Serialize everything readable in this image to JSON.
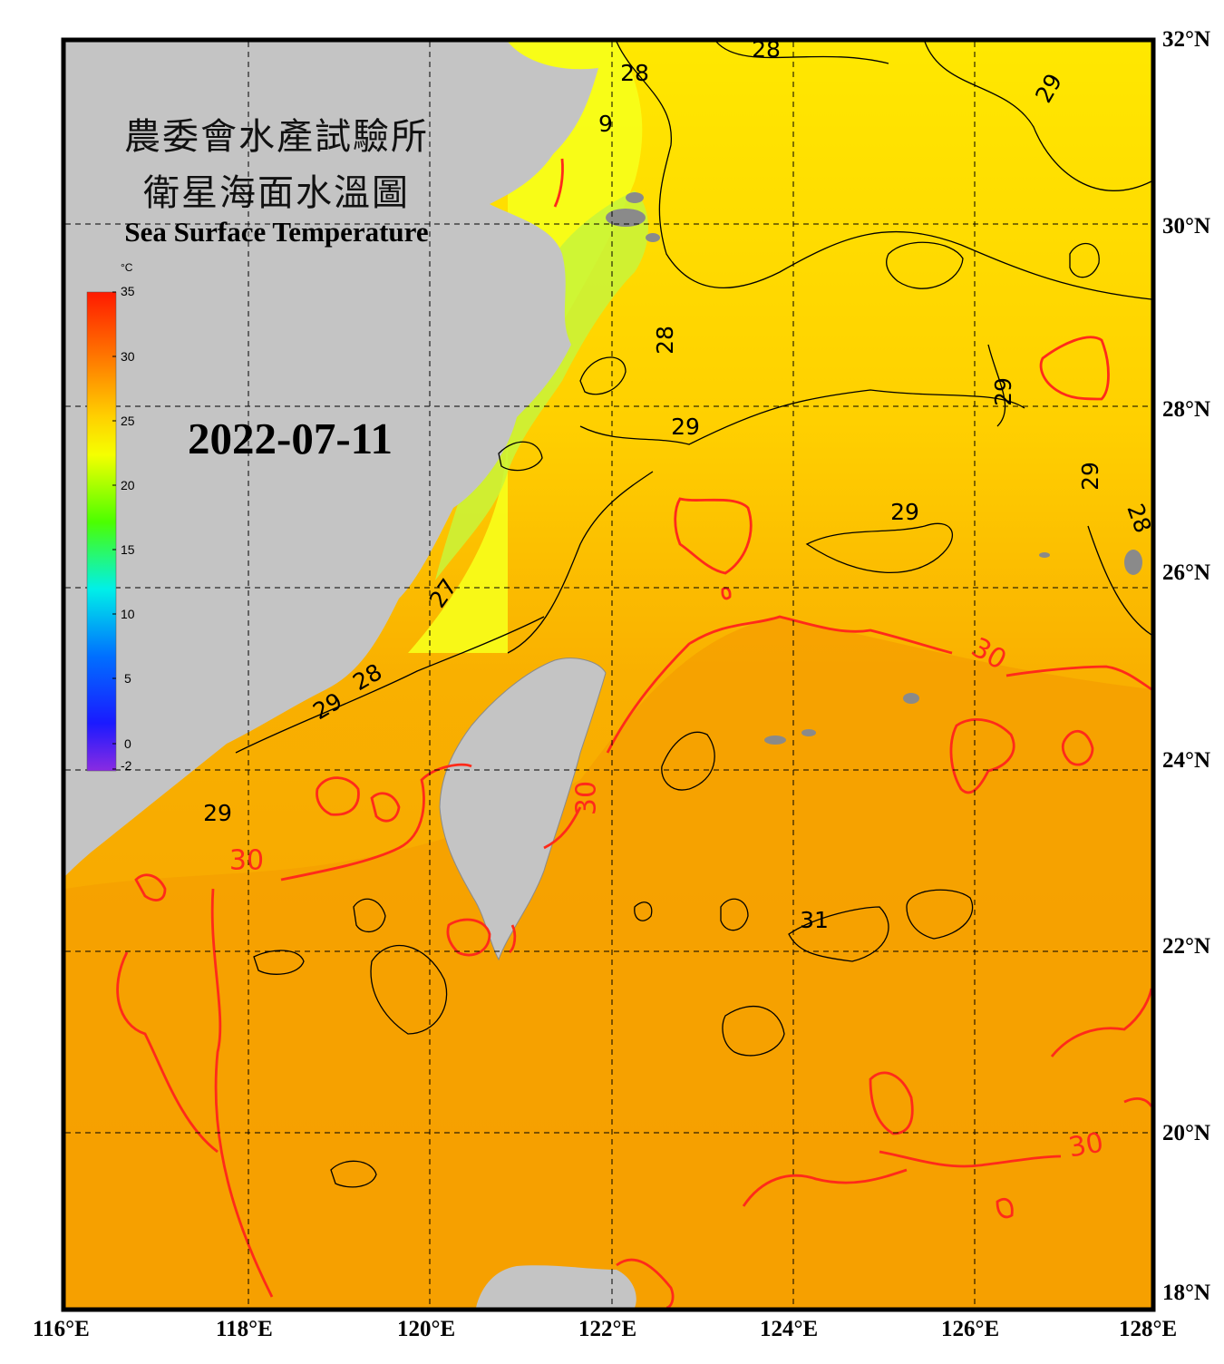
{
  "title": {
    "zh_line1": "農委會水產試驗所",
    "zh_line2": "衛星海面水溫圖",
    "en": "Sea Surface Temperature"
  },
  "date": "2022-07-11",
  "colorbar": {
    "unit": "°C",
    "ticks": [
      "35",
      "30",
      "25",
      "20",
      "15",
      "10",
      "5",
      "0",
      "-2"
    ],
    "colors": [
      "#ff1a00",
      "#ff7a00",
      "#ffd000",
      "#f5ff00",
      "#7dff00",
      "#00e05a",
      "#00f0e8",
      "#0070ff",
      "#2020ff",
      "#8a2be2"
    ]
  },
  "axes": {
    "longitude_labels": [
      "116°E",
      "118°E",
      "120°E",
      "122°E",
      "124°E",
      "126°E",
      "128°E"
    ],
    "latitude_labels": [
      "32°N",
      "30°N",
      "28°N",
      "26°N",
      "24°N",
      "22°N",
      "20°N",
      "18°N"
    ]
  },
  "contour_labels": [
    {
      "text": "28"
    },
    {
      "text": "28"
    },
    {
      "text": "29"
    },
    {
      "text": "9"
    },
    {
      "text": "28"
    },
    {
      "text": "29"
    },
    {
      "text": "29"
    },
    {
      "text": "29"
    },
    {
      "text": "29"
    },
    {
      "text": "28"
    },
    {
      "text": "27"
    },
    {
      "text": "28"
    },
    {
      "text": "29"
    },
    {
      "text": "29"
    },
    {
      "text": "30"
    },
    {
      "text": "30"
    },
    {
      "text": "30"
    },
    {
      "text": "31"
    },
    {
      "text": "30"
    }
  ],
  "colors": {
    "land": "#c4c4c4",
    "sea_warm": "#f6a400",
    "sea_mid": "#ffd400",
    "sea_cool": "#ffff1a",
    "contour_30": "#ff2a1a",
    "contour_other": "#000000",
    "frame": "#000000"
  }
}
